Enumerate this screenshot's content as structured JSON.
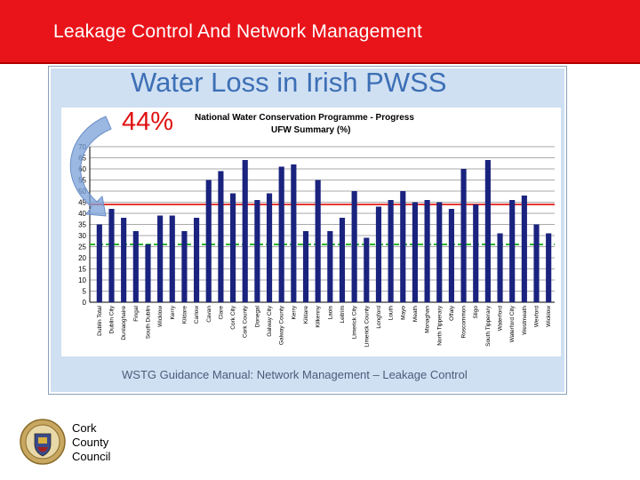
{
  "header": {
    "title": "Leakage Control And Network Management"
  },
  "slide": {
    "title": "Water Loss in Irish PWSS",
    "callout": "44%",
    "caption": "WSTG Guidance Manual: Network Management – Leakage Control"
  },
  "colors": {
    "header_bg": "#e8141a",
    "bar": "#1a237e",
    "red_line": "#e53935",
    "green_line": "#2db52d",
    "title": "#3d6fb5"
  },
  "chart_data": {
    "type": "bar",
    "title": "National Water Conservation Programme - Progress",
    "subtitle": "UFW Summary (%)",
    "xlabel": "",
    "ylabel": "",
    "ylim": [
      0,
      70
    ],
    "yticks": [
      0,
      5,
      10,
      15,
      20,
      25,
      30,
      35,
      40,
      45,
      50,
      55,
      60,
      65,
      70
    ],
    "grid": true,
    "reference_lines": [
      {
        "value": 44,
        "color": "#e53935"
      },
      {
        "value": 26,
        "color": "#2db52d"
      }
    ],
    "categories": [
      "Dublin Total",
      "Dublin City",
      "Dunlaoghaire",
      "Fingal",
      "South Dublin",
      "Wicklow",
      "Kerry",
      "Kildare",
      "Carlow",
      "Cavan",
      "Clare",
      "Cork City",
      "Cork County",
      "Donegal",
      "Galway City",
      "Galway County",
      "Kerry",
      "Kildare",
      "Kilkenny",
      "Laois",
      "Leitrim",
      "Limerick City",
      "Limerick County",
      "Longford",
      "Louth",
      "Mayo",
      "Meath",
      "Monaghan",
      "North Tipperary",
      "Offaly",
      "Roscommon",
      "Sligo",
      "South Tipperary",
      "Waterford",
      "Waterford City",
      "Westmeath",
      "Wexford",
      "Wicklow"
    ],
    "values": [
      35,
      42,
      38,
      32,
      26,
      39,
      39,
      32,
      38,
      55,
      59,
      49,
      64,
      46,
      49,
      61,
      62,
      32,
      55,
      32,
      38,
      50,
      29,
      43,
      46,
      50,
      45,
      46,
      45,
      42,
      60,
      44,
      64,
      31,
      46,
      48,
      35,
      31
    ]
  },
  "footer": {
    "council_lines": [
      "Cork",
      "County",
      "Council"
    ]
  }
}
